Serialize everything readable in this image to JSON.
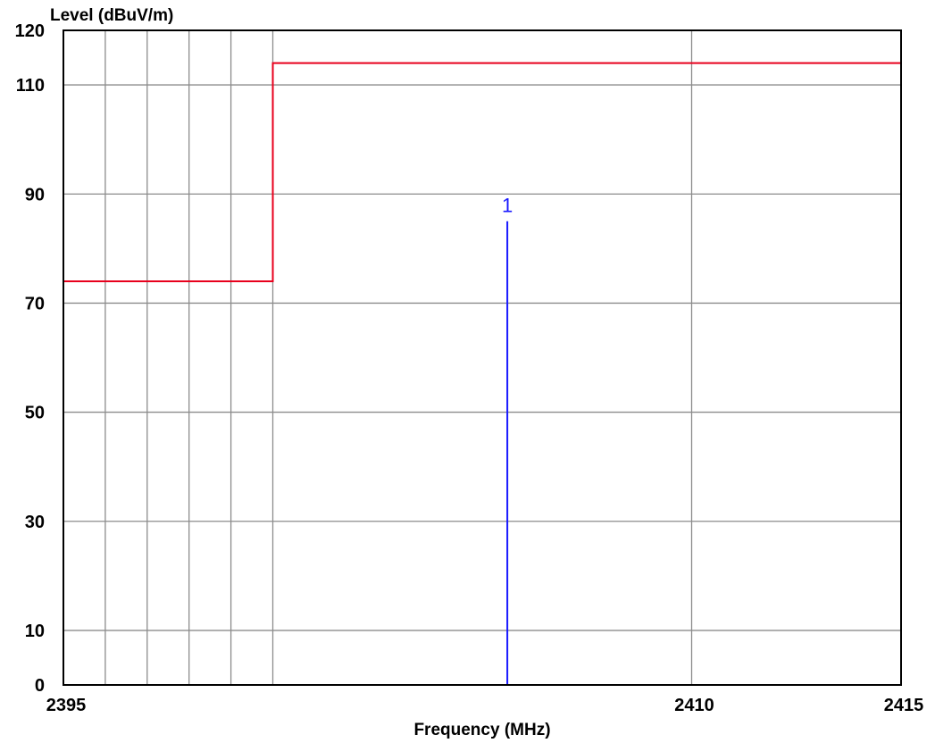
{
  "chart_data": {
    "type": "line",
    "title": "",
    "xlabel": "Frequency (MHz)",
    "ylabel": "Level (dBuV/m)",
    "xlim": [
      2395,
      2415
    ],
    "ylim": [
      0,
      120
    ],
    "x_tick_labels": [
      {
        "value": 2395,
        "label": "2395"
      },
      {
        "value": 2410,
        "label": "2410"
      },
      {
        "value": 2415,
        "label": "2415"
      }
    ],
    "y_tick_labels": [
      {
        "value": 0,
        "label": "0"
      },
      {
        "value": 10,
        "label": "10"
      },
      {
        "value": 30,
        "label": "30"
      },
      {
        "value": 50,
        "label": "50"
      },
      {
        "value": 70,
        "label": "70"
      },
      {
        "value": 90,
        "label": "90"
      },
      {
        "value": 110,
        "label": "110"
      },
      {
        "value": 120,
        "label": "120"
      }
    ],
    "grid": true,
    "x_gridlines": [
      2396,
      2397,
      2398,
      2399,
      2400,
      2410
    ],
    "y_gridlines": [
      10,
      30,
      50,
      70,
      90,
      110
    ],
    "series": [
      {
        "color": "#e8001c",
        "x": [
          2395,
          2400,
          2400,
          2415
        ],
        "y": [
          74,
          74,
          114,
          114
        ]
      },
      {
        "color": "#1a1aff",
        "x": [
          2405.6,
          2405.6
        ],
        "y": [
          0,
          85
        ]
      }
    ],
    "annotations": [
      {
        "text": "1",
        "x": 2405.6,
        "y": 88,
        "color": "#1a1aff"
      }
    ]
  }
}
